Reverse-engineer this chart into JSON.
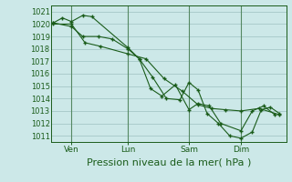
{
  "background_color": "#cce8e8",
  "grid_color": "#aacccc",
  "line_color": "#1a5c1a",
  "marker_color": "#1a5c1a",
  "xlabel": "Pression niveau de la mer( hPa )",
  "xlabel_fontsize": 8,
  "ylim": [
    1010.5,
    1021.5
  ],
  "yticks": [
    1011,
    1012,
    1013,
    1014,
    1015,
    1016,
    1017,
    1018,
    1019,
    1020,
    1021
  ],
  "xtick_labels": [
    "Ven",
    "Lun",
    "Sam",
    "Dim"
  ],
  "xtick_positions": [
    0.08,
    0.33,
    0.6,
    0.83
  ],
  "series": [
    {
      "x": [
        0.0,
        0.04,
        0.08,
        0.13,
        0.17,
        0.33,
        0.38,
        0.44,
        0.5,
        0.56,
        0.6,
        0.64,
        0.68,
        0.73,
        0.78,
        0.83,
        0.88,
        0.92,
        0.96,
        1.0
      ],
      "y": [
        1020.1,
        1020.5,
        1020.2,
        1020.7,
        1020.6,
        1018.1,
        1017.2,
        1015.7,
        1014.0,
        1013.9,
        1015.3,
        1014.7,
        1012.8,
        1012.0,
        1011.0,
        1010.8,
        1011.3,
        1013.1,
        1013.3,
        1012.8
      ]
    },
    {
      "x": [
        0.0,
        0.08,
        0.13,
        0.2,
        0.26,
        0.33,
        0.38,
        0.43,
        0.48,
        0.54,
        0.6,
        0.64,
        0.69,
        0.74,
        0.83,
        0.88,
        0.93,
        0.98
      ],
      "y": [
        1020.1,
        1019.8,
        1019.0,
        1019.0,
        1018.8,
        1018.0,
        1017.2,
        1014.8,
        1014.2,
        1015.1,
        1013.1,
        1013.6,
        1013.4,
        1012.0,
        1011.4,
        1013.0,
        1013.4,
        1012.7
      ]
    },
    {
      "x": [
        0.0,
        0.08,
        0.14,
        0.21,
        0.33,
        0.41,
        0.49,
        0.57,
        0.64,
        0.7,
        0.76,
        0.83,
        0.91,
        1.0
      ],
      "y": [
        1020.0,
        1020.0,
        1018.5,
        1018.2,
        1017.6,
        1017.2,
        1015.6,
        1014.6,
        1013.5,
        1013.2,
        1013.1,
        1013.0,
        1013.2,
        1012.7
      ]
    }
  ]
}
